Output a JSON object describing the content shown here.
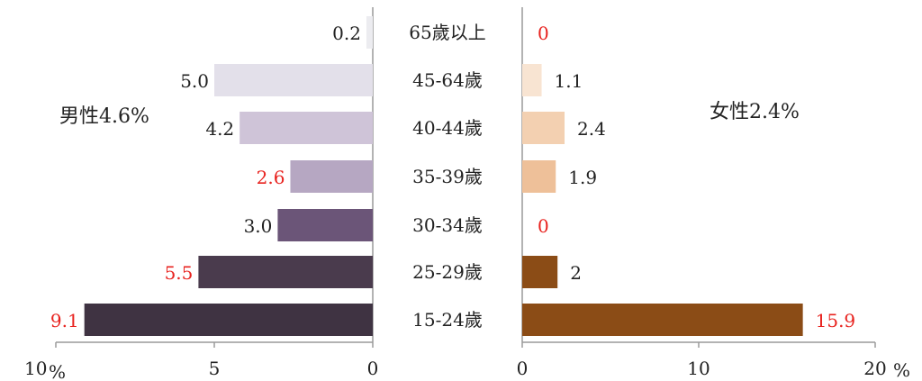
{
  "chart_data": {
    "type": "bar",
    "orientation": "horizontal-butterfly",
    "categories": [
      "65歲以上",
      "45-64歲",
      "40-44歲",
      "35-39歲",
      "30-34歲",
      "25-29歲",
      "15-24歲"
    ],
    "series": [
      {
        "name": "男性4.6%",
        "side": "left",
        "values": [
          0.2,
          5.0,
          4.2,
          2.6,
          3.0,
          5.5,
          9.1
        ],
        "labels": [
          "0.2",
          "5.0",
          "4.2",
          "2.6",
          "3.0",
          "5.5",
          "9.1"
        ],
        "colors": [
          "#ececf0",
          "#e3e0ea",
          "#cfc4d8",
          "#b6a7c2",
          "#6b5578",
          "#4a3b4d",
          "#3f3342"
        ],
        "label_colors": [
          "#222222",
          "#222222",
          "#222222",
          "#e8231f",
          "#222222",
          "#e8231f",
          "#e8231f"
        ]
      },
      {
        "name": "女性2.4%",
        "side": "right",
        "values": [
          0,
          1.1,
          2.4,
          1.9,
          0,
          2,
          15.9
        ],
        "labels": [
          "0",
          "1.1",
          "2.4",
          "1.9",
          "0",
          "2",
          "15.9"
        ],
        "colors": [
          "#fbeee4",
          "#f8e4d2",
          "#f3d0b1",
          "#eec099",
          "#8b4c1f",
          "#8b4c16",
          "#8b4c16"
        ],
        "label_colors": [
          "#e8231f",
          "#222222",
          "#222222",
          "#222222",
          "#e8231f",
          "#222222",
          "#e8231f"
        ]
      }
    ],
    "left_axis": {
      "xlim": [
        0,
        10
      ],
      "ticks": [
        "10",
        "5",
        "0"
      ],
      "unit": "%"
    },
    "right_axis": {
      "xlim": [
        0,
        20
      ],
      "ticks": [
        "0",
        "10",
        "20"
      ],
      "unit": "%"
    },
    "grid": false,
    "legend": "none"
  }
}
